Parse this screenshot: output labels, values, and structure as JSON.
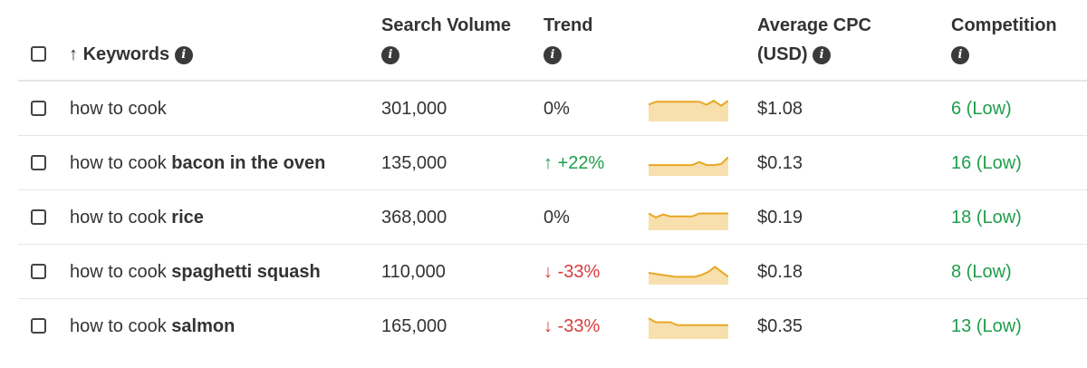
{
  "header": {
    "sort_arrow": "↑",
    "keywords": "Keywords",
    "search_volume": "Search Volume",
    "trend": "Trend",
    "avg_cpc_line1": "Average CPC",
    "avg_cpc_line2": "(USD)",
    "competition": "Competition",
    "info_glyph": "i"
  },
  "rows": [
    {
      "kw_prefix": "how to cook",
      "kw_bold": "",
      "volume": "301,000",
      "trend_arrow": "",
      "trend": "0%",
      "trend_dir": "flat",
      "cpc": "$1.08",
      "competition": "6 (Low)",
      "spark": [
        0.75,
        0.9,
        0.9,
        0.9,
        0.9,
        0.9,
        0.9,
        0.9,
        0.75,
        0.95,
        0.7,
        0.95
      ]
    },
    {
      "kw_prefix": "how to cook ",
      "kw_bold": "bacon in the oven",
      "volume": "135,000",
      "trend_arrow": "↑",
      "trend": "+22%",
      "trend_dir": "up",
      "cpc": "$0.13",
      "competition": "16 (Low)",
      "spark": [
        0.45,
        0.45,
        0.45,
        0.45,
        0.45,
        0.45,
        0.45,
        0.6,
        0.45,
        0.45,
        0.5,
        0.85
      ]
    },
    {
      "kw_prefix": "how to cook ",
      "kw_bold": "rice",
      "volume": "368,000",
      "trend_arrow": "",
      "trend": "0%",
      "trend_dir": "flat",
      "cpc": "$0.19",
      "competition": "18 (Low)",
      "spark": [
        0.75,
        0.55,
        0.7,
        0.6,
        0.6,
        0.6,
        0.6,
        0.75,
        0.75,
        0.75,
        0.75,
        0.75
      ]
    },
    {
      "kw_prefix": "how to cook ",
      "kw_bold": "spaghetti squash",
      "volume": "110,000",
      "trend_arrow": "↓",
      "trend": "-33%",
      "trend_dir": "down",
      "cpc": "$0.18",
      "competition": "8 (Low)",
      "spark": [
        0.5,
        0.45,
        0.4,
        0.35,
        0.3,
        0.3,
        0.3,
        0.3,
        0.4,
        0.55,
        0.8,
        0.55,
        0.3
      ]
    },
    {
      "kw_prefix": "how to cook ",
      "kw_bold": "salmon",
      "volume": "165,000",
      "trend_arrow": "↓",
      "trend": "-33%",
      "trend_dir": "down",
      "cpc": "$0.35",
      "competition": "13 (Low)",
      "spark": [
        0.95,
        0.75,
        0.75,
        0.75,
        0.6,
        0.6,
        0.6,
        0.6,
        0.6,
        0.6,
        0.6,
        0.6
      ]
    }
  ],
  "colors": {
    "spark_line": "#e8a825",
    "spark_fill": "#f7dfae",
    "up": "#1e9e4a",
    "down": "#d93b3b",
    "competition": "#1e9e4a"
  }
}
